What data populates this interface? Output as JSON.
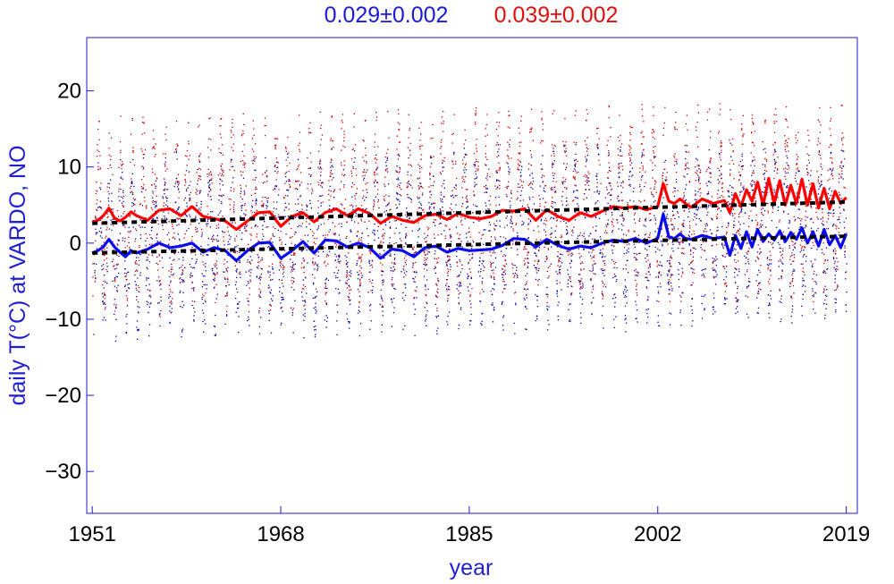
{
  "chart_data": {
    "type": "scatter",
    "title_trends": [
      {
        "text": "0.029±0.002",
        "color": "#1a1adc"
      },
      {
        "text": "0.039±0.002",
        "color": "#e01010"
      }
    ],
    "xlabel": "year",
    "ylabel": "daily T(°C) at VARDO, NO",
    "xlim": [
      1950.5,
      2020.0
    ],
    "ylim": [
      -35.5,
      27
    ],
    "x_ticks": [
      1951,
      1968,
      1985,
      2002,
      2019
    ],
    "y_ticks": [
      20,
      10,
      0,
      -10,
      -20,
      -30
    ],
    "grid": false,
    "series": [
      {
        "kind": "smoothed",
        "color": "#ff0000",
        "x": [
          1951.0,
          1951.5,
          1952.0,
          1952.5,
          1953.0,
          1953.5,
          1954.0,
          1954.5,
          1955.0,
          1956.0,
          1957.0,
          1958.0,
          1959.0,
          1960.0,
          1961.0,
          1962.0,
          1963.0,
          1964.0,
          1965.0,
          1966.0,
          1967.0,
          1968.0,
          1969.0,
          1970.0,
          1971.0,
          1972.0,
          1973.0,
          1974.0,
          1975.0,
          1976.0,
          1977.0,
          1978.0,
          1979.0,
          1980.0,
          1981.0,
          1982.0,
          1983.0,
          1984.0,
          1985.0,
          1986.0,
          1987.0,
          1988.0,
          1989.0,
          1990.0,
          1991.0,
          1992.0,
          1993.0,
          1994.0,
          1995.0,
          1996.0,
          1997.0,
          1998.0,
          1999.0,
          2000.0,
          2001.0,
          2002.0,
          2002.5,
          2003.0,
          2003.5,
          2004.0,
          2004.5,
          2005.0,
          2006.0,
          2007.0,
          2008.0,
          2008.5,
          2009.0,
          2009.5,
          2010.0,
          2010.5,
          2011.0,
          2011.5,
          2012.0,
          2012.5,
          2013.0,
          2013.5,
          2014.0,
          2014.5,
          2015.0,
          2015.5,
          2016.0,
          2016.5,
          2017.0,
          2017.5,
          2018.0,
          2018.5,
          2019.0
        ],
        "y": [
          2.8,
          3.0,
          3.6,
          4.6,
          3.3,
          2.9,
          3.4,
          4.1,
          3.6,
          3.0,
          4.3,
          4.5,
          3.6,
          4.8,
          3.5,
          3.2,
          2.9,
          1.8,
          2.9,
          4.0,
          4.1,
          2.2,
          3.5,
          4.0,
          2.8,
          4.0,
          4.5,
          3.6,
          4.5,
          3.9,
          2.6,
          3.5,
          3.0,
          2.7,
          3.6,
          3.8,
          3.1,
          3.9,
          3.4,
          3.2,
          3.5,
          4.3,
          4.2,
          4.5,
          3.0,
          4.4,
          3.5,
          3.0,
          4.0,
          3.5,
          4.2,
          4.8,
          4.6,
          4.8,
          4.4,
          4.8,
          7.8,
          5.5,
          5.2,
          5.8,
          5.2,
          4.7,
          5.8,
          5.2,
          5.6,
          4.0,
          6.5,
          4.8,
          7.0,
          5.5,
          8.0,
          5.0,
          8.5,
          5.2,
          8.2,
          5.0,
          7.6,
          5.2,
          8.4,
          5.0,
          7.8,
          4.6,
          7.2,
          4.5,
          6.8,
          5.2,
          6.0
        ]
      },
      {
        "kind": "smoothed",
        "color": "#0a0af0",
        "x": [
          1951.0,
          1951.5,
          1952.0,
          1952.5,
          1953.0,
          1953.5,
          1954.0,
          1954.5,
          1955.0,
          1956.0,
          1957.0,
          1958.0,
          1959.0,
          1960.0,
          1961.0,
          1962.0,
          1963.0,
          1964.0,
          1965.0,
          1966.0,
          1967.0,
          1968.0,
          1969.0,
          1970.0,
          1971.0,
          1972.0,
          1973.0,
          1974.0,
          1975.0,
          1976.0,
          1977.0,
          1978.0,
          1979.0,
          1980.0,
          1981.0,
          1982.0,
          1983.0,
          1984.0,
          1985.0,
          1986.0,
          1987.0,
          1988.0,
          1989.0,
          1990.0,
          1991.0,
          1992.0,
          1993.0,
          1994.0,
          1995.0,
          1996.0,
          1997.0,
          1998.0,
          1999.0,
          2000.0,
          2001.0,
          2002.0,
          2002.5,
          2003.0,
          2003.5,
          2004.0,
          2004.5,
          2005.0,
          2006.0,
          2007.0,
          2008.0,
          2008.5,
          2009.0,
          2009.5,
          2010.0,
          2010.5,
          2011.0,
          2011.5,
          2012.0,
          2012.5,
          2013.0,
          2013.5,
          2014.0,
          2014.5,
          2015.0,
          2015.5,
          2016.0,
          2016.5,
          2017.0,
          2017.5,
          2018.0,
          2018.5,
          2019.0
        ],
        "y": [
          -1.3,
          -1.0,
          -0.5,
          0.5,
          -0.5,
          -1.2,
          -1.8,
          -1.0,
          -1.3,
          -0.8,
          0.0,
          -0.6,
          -0.4,
          0.0,
          -1.2,
          -0.6,
          -1.0,
          -2.3,
          -1.0,
          0.0,
          0.1,
          -2.0,
          -1.0,
          0.2,
          -1.3,
          0.4,
          0.3,
          -0.5,
          0.0,
          -0.6,
          -2.0,
          -0.8,
          -1.0,
          -1.8,
          -0.6,
          -0.4,
          -1.2,
          -0.7,
          -1.0,
          -0.9,
          -0.8,
          -0.3,
          0.6,
          0.5,
          -0.5,
          0.5,
          -0.3,
          -0.8,
          -0.4,
          -0.6,
          0.0,
          0.4,
          0.2,
          0.6,
          0.0,
          0.6,
          3.8,
          0.8,
          0.6,
          1.2,
          0.6,
          0.5,
          1.0,
          0.6,
          0.8,
          -1.6,
          1.0,
          -0.7,
          1.5,
          -0.5,
          1.8,
          0.2,
          1.2,
          0.4,
          1.6,
          0.2,
          1.4,
          0.5,
          2.0,
          0.0,
          1.5,
          -0.4,
          1.8,
          -0.2,
          1.0,
          -0.6,
          1.2
        ]
      }
    ],
    "trend_lines": [
      {
        "color": "#000000",
        "x": [
          1951,
          2019
        ],
        "y": [
          2.6,
          5.4
        ]
      },
      {
        "color": "#000000",
        "x": [
          1951,
          2019
        ],
        "y": [
          -1.3,
          0.9
        ]
      }
    ],
    "scatter_points": {
      "colors": [
        "#d00000",
        "#0000b0"
      ],
      "description_seasonal": true
    }
  }
}
